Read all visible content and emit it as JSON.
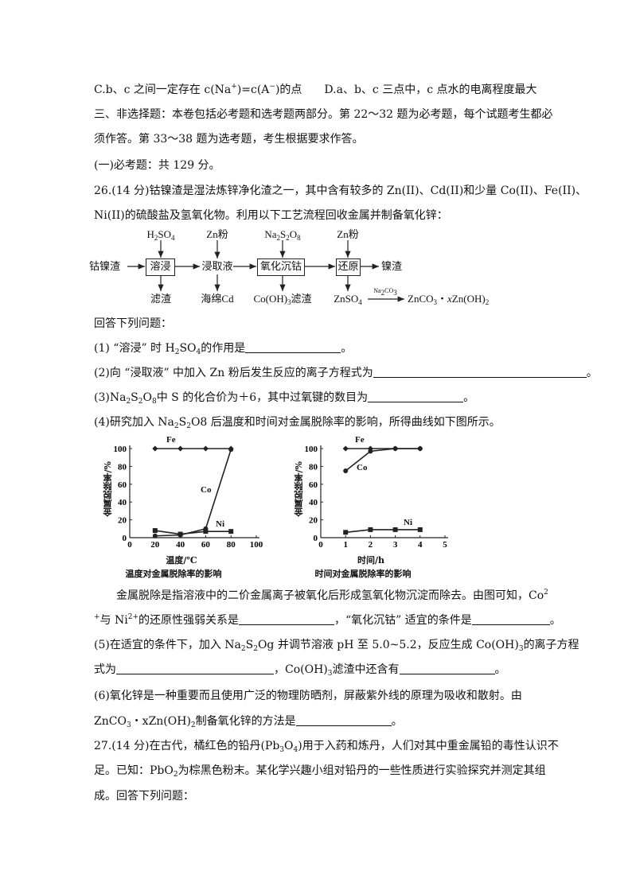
{
  "lines": [
    [
      "C.b、c 之间一定存在 c(Na",
      {
        "sup": "+"
      },
      ")=c(A",
      {
        "sup": "−"
      },
      ")的点　　D.a、b、c 三点中，c 点水的电离程度最大"
    ],
    [
      "三、非选择题：本卷包括必考题和选考题两部分。第 22～32 题为必考题，每个试题考生都必"
    ],
    [
      "须作答。第 33～38 题为选考题，考生根据要求作答。"
    ],
    [
      "(一)必考题：共 129 分。"
    ],
    [
      "26.(14 分)钴镍渣是湿法炼锌净化渣之一，其中含有较多的 Zn(II)、Cd(II)和少量 Co(II)、Fe(II)、"
    ],
    [
      "Ni(II)的硫酸盐及氢氧化物。利用以下工艺流程回收金属并制备氧化锌："
    ],
    [
      "回答下列问题："
    ],
    [
      "(1) “溶浸” 时 H",
      {
        "sub": "2"
      },
      "SO",
      {
        "sub": "4"
      },
      "的作用是",
      {
        "blank": "m"
      },
      "。"
    ],
    [
      "(2)向 “浸取液” 中加入 Zn 粉后发生反应的离子方程式为",
      {
        "blank": "xl"
      },
      "。"
    ],
    [
      "(3)Na",
      {
        "sub": "2"
      },
      "S",
      {
        "sub": "2"
      },
      "O",
      {
        "sub": "8"
      },
      "中 S 的化合价为＋6，其中过氧键的数目为",
      {
        "blank": "m"
      },
      "。"
    ],
    [
      "(4)研究加入 Na",
      {
        "sub": "2"
      },
      "S",
      {
        "sub": "2"
      },
      "O8 后温度和时间对金属脱除率的影响，所得曲线如下图所示。"
    ],
    [
      "金属脱除是指溶液中的二价金属离子被氧化后形成氢氧化物沉淀而除去。由图可知，Co",
      {
        "sup": "2"
      }
    ],
    [
      {
        "sup": "+"
      },
      "与 Ni",
      {
        "sup": "2+"
      },
      "的还原性强弱关系是",
      {
        "blank": "m"
      },
      "，“氧化沉钴” 适宜的条件是",
      {
        "blank": "s"
      },
      "。"
    ],
    [
      "(5)在适宜的条件下，加入 Na",
      {
        "sub": "2"
      },
      "S",
      {
        "sub": "2"
      },
      "Og 并调节溶液 pH 至 5.0~5.2，反应生成 Co(OH)",
      {
        "sub": "3"
      },
      "的离子方程"
    ],
    [
      "式为",
      {
        "blank": "l"
      },
      "，Co(OH)",
      {
        "sub": "3"
      },
      "滤渣中还含有",
      {
        "blank": "m"
      },
      "。"
    ],
    [
      "(6)氧化锌是一种重要而且使用广泛的物理防晒剂，屏蔽紫外线的原理为吸收和散射。由"
    ],
    [
      "ZnCO",
      {
        "sub": "3"
      },
      "・xZn(OH)",
      {
        "sub": "2"
      },
      "制备氧化锌的方法是",
      {
        "blank": "m"
      },
      "。"
    ],
    [
      "27.(14 分)在古代，橘红色的铅丹(Pb",
      {
        "sub": "3"
      },
      "O",
      {
        "sub": "4"
      },
      ")用于入药和炼丹，人们对其中重金属铅的毒性认识不"
    ],
    [
      "足。已知：PbO",
      {
        "sub": "2"
      },
      "为棕黑色粉末。某化学兴趣小组对铅丹的一些性质进行实验探究并测定其组"
    ],
    [
      "成。回答下列问题："
    ]
  ],
  "flow": {
    "start": [
      "钴镍渣"
    ],
    "boxes": [
      [
        "溶浸"
      ],
      [
        "氧化沉钴"
      ],
      [
        "还原"
      ]
    ],
    "reagents": [
      [
        "H",
        {
          "sub": "2"
        },
        "SO",
        {
          "sub": "4"
        }
      ],
      [
        "Zn粉"
      ],
      [
        "Na",
        {
          "sub": "2"
        },
        "S",
        {
          "sub": "2"
        },
        "O",
        {
          "sub": "8"
        }
      ],
      [
        "Zn粉"
      ]
    ],
    "intermediate": [
      "浸取液"
    ],
    "outputs": [
      [
        "滤渣"
      ],
      [
        "海绵Cd"
      ],
      [
        "Co(OH)",
        {
          "sub": "3"
        },
        "滤渣"
      ],
      [
        "ZnSO",
        {
          "sub": "4"
        }
      ]
    ],
    "final_residue": [
      "镍渣"
    ],
    "arrow_label": [
      "Na",
      {
        "sub": "2"
      },
      "CO",
      {
        "sub": "3"
      }
    ],
    "product": [
      "ZnCO",
      {
        "sub": "3"
      },
      "・",
      {
        "i": "x"
      },
      "Zn(OH)",
      {
        "sub": "2"
      }
    ]
  },
  "chart_data": [
    {
      "type": "line",
      "title": "温度对金属脱除率的影响",
      "xlabel": "温度/℃",
      "ylabel": "金属脱除率/%",
      "xlim": [
        0,
        100
      ],
      "ylim": [
        0,
        100
      ],
      "xticks": [
        "0",
        "20",
        "40",
        "60",
        "80",
        "100"
      ],
      "yticks": [
        "0",
        "20",
        "40",
        "60",
        "80",
        "100"
      ],
      "x": [
        20,
        40,
        60,
        80
      ],
      "series": [
        {
          "name": "Fe",
          "values": [
            100,
            100,
            100,
            100
          ],
          "marker": "diamond"
        },
        {
          "name": "Co",
          "values": [
            2,
            3,
            10,
            99
          ],
          "marker": "circle"
        },
        {
          "name": "Ni",
          "values": [
            8,
            4,
            7,
            7
          ],
          "marker": "square"
        }
      ],
      "grid": false
    },
    {
      "type": "line",
      "title": "时间对金属脱除率的影响",
      "xlabel": "时间/h",
      "ylabel": "金属脱除率/%",
      "xlim": [
        0,
        5
      ],
      "ylim": [
        0,
        100
      ],
      "xticks": [
        "0",
        "1",
        "2",
        "3",
        "4",
        "5"
      ],
      "yticks": [
        "0",
        "20",
        "40",
        "60",
        "80",
        "100"
      ],
      "x": [
        1,
        2,
        3,
        4
      ],
      "series": [
        {
          "name": "Fe",
          "values": [
            100,
            100,
            100,
            100
          ],
          "marker": "diamond"
        },
        {
          "name": "Co",
          "values": [
            75,
            97,
            100,
            100
          ],
          "marker": "circle"
        },
        {
          "name": "Ni",
          "values": [
            6,
            9,
            9,
            9
          ],
          "marker": "square"
        }
      ],
      "grid": false
    }
  ]
}
